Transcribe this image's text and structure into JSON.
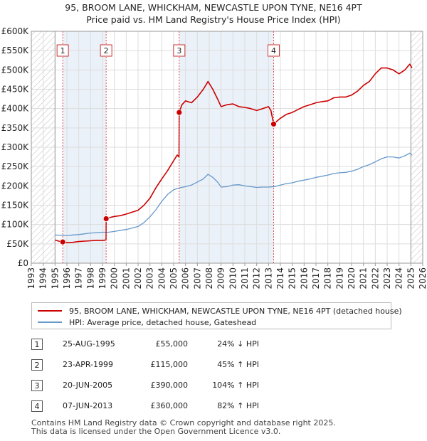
{
  "chart_data": {
    "type": "line",
    "title": "95, BROOM LANE, WHICKHAM, NEWCASTLE UPON TYNE, NE16 4PT",
    "subtitle": "Price paid vs. HM Land Registry's House Price Index (HPI)",
    "xlabel": "",
    "ylabel": "",
    "xlim": [
      1993,
      2026
    ],
    "ylim": [
      0,
      600000
    ],
    "x_ticks": [
      "1993",
      "1994",
      "1995",
      "1996",
      "1997",
      "1998",
      "1999",
      "2000",
      "2001",
      "2002",
      "2003",
      "2004",
      "2005",
      "2006",
      "2007",
      "2008",
      "2009",
      "2010",
      "2011",
      "2012",
      "2013",
      "2014",
      "2015",
      "2016",
      "2017",
      "2018",
      "2019",
      "2020",
      "2021",
      "2022",
      "2023",
      "2024",
      "2025",
      "2026"
    ],
    "y_ticks": [
      {
        "value": 0,
        "label": "£0"
      },
      {
        "value": 50000,
        "label": "£50K"
      },
      {
        "value": 100000,
        "label": "£100K"
      },
      {
        "value": 150000,
        "label": "£150K"
      },
      {
        "value": 200000,
        "label": "£200K"
      },
      {
        "value": 250000,
        "label": "£250K"
      },
      {
        "value": 300000,
        "label": "£300K"
      },
      {
        "value": 350000,
        "label": "£350K"
      },
      {
        "value": 400000,
        "label": "£400K"
      },
      {
        "value": 450000,
        "label": "£450K"
      },
      {
        "value": 500000,
        "label": "£500K"
      },
      {
        "value": 550000,
        "label": "£550K"
      },
      {
        "value": 600000,
        "label": "£600K"
      }
    ],
    "shaded_ranges": [
      {
        "label": "1",
        "from": 1995.65,
        "to": 1999.31
      },
      {
        "label": "3",
        "from": 2005.47,
        "to": 2013.43
      }
    ],
    "hatched_ranges": [
      {
        "from": 1993,
        "to": 1995.0
      },
      {
        "from": 2025.0,
        "to": 2026
      }
    ],
    "series": [
      {
        "name": "95, BROOM LANE, WHICKHAM, NEWCASTLE UPON TYNE, NE16 4PT (detached house)",
        "color": "#cc0000",
        "points": [
          [
            1995.0,
            60000
          ],
          [
            1995.3,
            57000
          ],
          [
            1995.65,
            55000
          ],
          [
            1996.0,
            53000
          ],
          [
            1996.5,
            54000
          ],
          [
            1997.0,
            56000
          ],
          [
            1997.5,
            57000
          ],
          [
            1998.0,
            58000
          ],
          [
            1998.5,
            59000
          ],
          [
            1999.0,
            59000
          ],
          [
            1999.3,
            60000
          ],
          [
            1999.31,
            115000
          ],
          [
            1999.6,
            118000
          ],
          [
            2000.0,
            121000
          ],
          [
            2000.5,
            123000
          ],
          [
            2001.0,
            127000
          ],
          [
            2001.5,
            132000
          ],
          [
            2002.0,
            137000
          ],
          [
            2002.5,
            150000
          ],
          [
            2003.0,
            168000
          ],
          [
            2003.5,
            195000
          ],
          [
            2004.0,
            218000
          ],
          [
            2004.5,
            240000
          ],
          [
            2005.0,
            265000
          ],
          [
            2005.3,
            280000
          ],
          [
            2005.45,
            275000
          ],
          [
            2005.47,
            390000
          ],
          [
            2005.7,
            410000
          ],
          [
            2006.0,
            420000
          ],
          [
            2006.5,
            415000
          ],
          [
            2007.0,
            430000
          ],
          [
            2007.5,
            450000
          ],
          [
            2007.9,
            470000
          ],
          [
            2008.3,
            450000
          ],
          [
            2008.7,
            425000
          ],
          [
            2009.0,
            405000
          ],
          [
            2009.5,
            410000
          ],
          [
            2010.0,
            412000
          ],
          [
            2010.5,
            405000
          ],
          [
            2011.0,
            403000
          ],
          [
            2011.5,
            400000
          ],
          [
            2012.0,
            395000
          ],
          [
            2012.5,
            400000
          ],
          [
            2013.0,
            405000
          ],
          [
            2013.2,
            395000
          ],
          [
            2013.43,
            360000
          ],
          [
            2013.8,
            370000
          ],
          [
            2014.0,
            375000
          ],
          [
            2014.5,
            385000
          ],
          [
            2015.0,
            390000
          ],
          [
            2015.5,
            398000
          ],
          [
            2016.0,
            405000
          ],
          [
            2016.5,
            410000
          ],
          [
            2017.0,
            415000
          ],
          [
            2017.5,
            418000
          ],
          [
            2018.0,
            420000
          ],
          [
            2018.5,
            428000
          ],
          [
            2019.0,
            430000
          ],
          [
            2019.5,
            430000
          ],
          [
            2020.0,
            435000
          ],
          [
            2020.5,
            445000
          ],
          [
            2021.0,
            460000
          ],
          [
            2021.5,
            470000
          ],
          [
            2022.0,
            490000
          ],
          [
            2022.5,
            505000
          ],
          [
            2023.0,
            505000
          ],
          [
            2023.5,
            500000
          ],
          [
            2024.0,
            490000
          ],
          [
            2024.5,
            500000
          ],
          [
            2024.9,
            515000
          ],
          [
            2025.1,
            505000
          ]
        ]
      },
      {
        "name": "HPI: Average price, detached house, Gateshead",
        "color": "#6699cc",
        "points": [
          [
            1995.0,
            73000
          ],
          [
            1995.5,
            72000
          ],
          [
            1996.0,
            71000
          ],
          [
            1996.5,
            73000
          ],
          [
            1997.0,
            74000
          ],
          [
            1997.5,
            76000
          ],
          [
            1998.0,
            78000
          ],
          [
            1998.5,
            79000
          ],
          [
            1999.0,
            80000
          ],
          [
            1999.5,
            80000
          ],
          [
            2000.0,
            82000
          ],
          [
            2000.5,
            85000
          ],
          [
            2001.0,
            87000
          ],
          [
            2001.5,
            91000
          ],
          [
            2002.0,
            95000
          ],
          [
            2002.5,
            105000
          ],
          [
            2003.0,
            120000
          ],
          [
            2003.5,
            138000
          ],
          [
            2004.0,
            160000
          ],
          [
            2004.5,
            178000
          ],
          [
            2005.0,
            190000
          ],
          [
            2005.5,
            195000
          ],
          [
            2006.0,
            198000
          ],
          [
            2006.5,
            202000
          ],
          [
            2007.0,
            210000
          ],
          [
            2007.5,
            218000
          ],
          [
            2007.9,
            230000
          ],
          [
            2008.3,
            222000
          ],
          [
            2008.7,
            210000
          ],
          [
            2009.0,
            197000
          ],
          [
            2009.5,
            198000
          ],
          [
            2010.0,
            202000
          ],
          [
            2010.5,
            203000
          ],
          [
            2011.0,
            200000
          ],
          [
            2011.5,
            198000
          ],
          [
            2012.0,
            196000
          ],
          [
            2012.5,
            197000
          ],
          [
            2013.0,
            197000
          ],
          [
            2013.5,
            198000
          ],
          [
            2014.0,
            202000
          ],
          [
            2014.5,
            206000
          ],
          [
            2015.0,
            208000
          ],
          [
            2015.5,
            212000
          ],
          [
            2016.0,
            215000
          ],
          [
            2016.5,
            218000
          ],
          [
            2017.0,
            222000
          ],
          [
            2017.5,
            225000
          ],
          [
            2018.0,
            228000
          ],
          [
            2018.5,
            232000
          ],
          [
            2019.0,
            234000
          ],
          [
            2019.5,
            235000
          ],
          [
            2020.0,
            238000
          ],
          [
            2020.5,
            243000
          ],
          [
            2021.0,
            250000
          ],
          [
            2021.5,
            255000
          ],
          [
            2022.0,
            262000
          ],
          [
            2022.5,
            270000
          ],
          [
            2023.0,
            275000
          ],
          [
            2023.5,
            275000
          ],
          [
            2024.0,
            272000
          ],
          [
            2024.5,
            278000
          ],
          [
            2024.9,
            285000
          ],
          [
            2025.1,
            280000
          ]
        ]
      }
    ],
    "sales": [
      {
        "label": "1",
        "x": 1995.65,
        "value": 55000
      },
      {
        "label": "2",
        "x": 1999.31,
        "value": 115000
      },
      {
        "label": "3",
        "x": 2005.47,
        "value": 390000
      },
      {
        "label": "4",
        "x": 2013.43,
        "value": 360000
      }
    ]
  },
  "legend": {
    "property_label": "95, BROOM LANE, WHICKHAM, NEWCASTLE UPON TYNE, NE16 4PT (detached house)",
    "hpi_label": "HPI: Average price, detached house, Gateshead",
    "property_color": "#cc0000",
    "hpi_color": "#6699cc"
  },
  "sales_table": [
    {
      "num": "1",
      "date": "25-AUG-1995",
      "price": "£55,000",
      "hpi": "24% ↓ HPI"
    },
    {
      "num": "2",
      "date": "23-APR-1999",
      "price": "£115,000",
      "hpi": "45% ↑ HPI"
    },
    {
      "num": "3",
      "date": "20-JUN-2005",
      "price": "£390,000",
      "hpi": "104% ↑ HPI"
    },
    {
      "num": "4",
      "date": "07-JUN-2013",
      "price": "£360,000",
      "hpi": "82% ↑ HPI"
    }
  ],
  "footer": {
    "line1": "Contains HM Land Registry data © Crown copyright and database right 2025.",
    "line2": "This data is licensed under the Open Government Licence v3.0."
  }
}
